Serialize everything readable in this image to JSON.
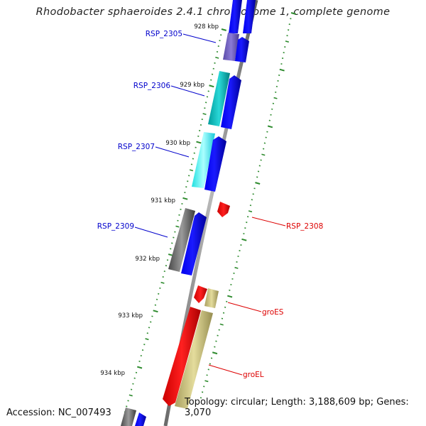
{
  "title": "Rhodobacter sphaeroides 2.4.1 chromosome 1, complete genome",
  "footer": {
    "accession": "Accession: NC_007493",
    "topology": "Topology: circular; Length: 3,188,609 bp; Genes: 3,070"
  },
  "colors": {
    "backbone": "#8c8c8c",
    "tick": "#2e8b2e",
    "forward_label": "#0000cc",
    "reverse_label": "#dd0000",
    "cds_forward": "#0000ee",
    "cds_reverse": "#ee0000"
  },
  "ticks": {
    "labels": [
      "928 kbp",
      "929 kbp",
      "930 kbp",
      "931 kbp",
      "932 kbp",
      "933 kbp",
      "934 kbp"
    ]
  },
  "genes": [
    {
      "name": "RSP_2305",
      "side": "left"
    },
    {
      "name": "RSP_2306",
      "side": "left"
    },
    {
      "name": "RSP_2307",
      "side": "left"
    },
    {
      "name": "RSP_2309",
      "side": "left"
    },
    {
      "name": "RSP_2308",
      "side": "right"
    },
    {
      "name": "groES",
      "side": "right"
    },
    {
      "name": "groEL",
      "side": "right"
    }
  ]
}
